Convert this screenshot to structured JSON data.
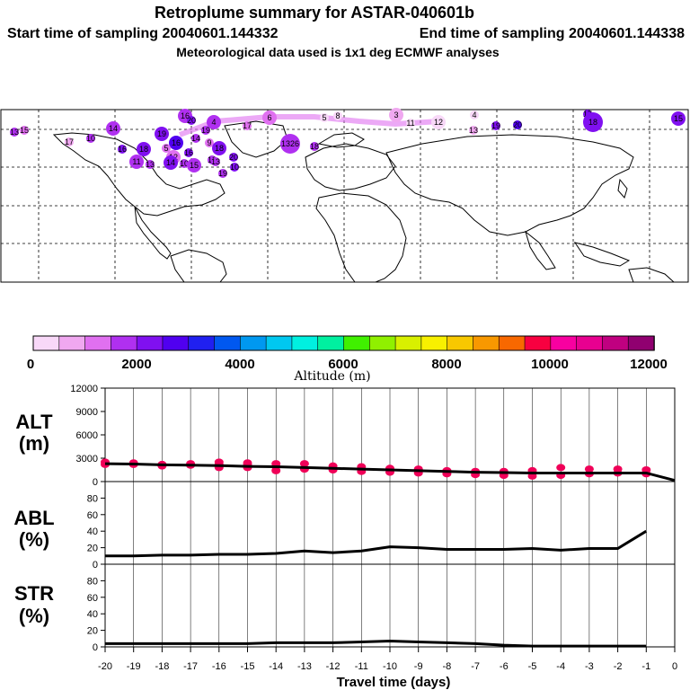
{
  "header": {
    "title": "Retroplume summary for ASTAR-040601b",
    "start_label": "Start time of sampling 20040601.144332",
    "end_label": "End time of sampling 20040601.144338",
    "met_label": "Meteorological data used is 1x1 deg ECMWF analyses"
  },
  "colorbar": {
    "colors": [
      "#f8d8f8",
      "#f0a8f0",
      "#e070f0",
      "#b030f0",
      "#8010f0",
      "#5000f0",
      "#2020f0",
      "#0058f0",
      "#0098f0",
      "#00c8f0",
      "#00f0e0",
      "#00f0a0",
      "#40f000",
      "#90f000",
      "#d8f000",
      "#f8f000",
      "#f8c800",
      "#f89800",
      "#f86800",
      "#f80040",
      "#f800a0",
      "#e80090",
      "#c00080",
      "#900070"
    ],
    "tick_labels": [
      "0",
      "2000",
      "4000",
      "6000",
      "8000",
      "10000",
      "12000"
    ],
    "label": "Altitude (m)"
  },
  "map": {
    "clusters": [
      {
        "label": "4",
        "size": "medium",
        "color": "#b030f0"
      },
      {
        "label": "6",
        "size": "medium",
        "color": "#e070f0"
      },
      {
        "label": "5",
        "size": "small",
        "color": "#f8d8f8"
      },
      {
        "label": "8",
        "size": "small",
        "color": "#f8d8f8"
      },
      {
        "label": "3",
        "size": "medium",
        "color": "#f0a8f0"
      },
      {
        "label": "11",
        "size": "small",
        "color": "#f8d8f8"
      },
      {
        "label": "12",
        "size": "medium",
        "color": "#f8d8f8"
      },
      {
        "label": "4",
        "size": "small",
        "color": "#f8d8f8"
      },
      {
        "label": "13",
        "size": "small",
        "color": "#f0a8f0"
      },
      {
        "label": "19",
        "size": "small",
        "color": "#8010f0"
      },
      {
        "label": "20",
        "size": "small",
        "color": "#5000f0"
      },
      {
        "label": "17",
        "size": "small",
        "color": "#8010f0"
      },
      {
        "label": "18",
        "size": "large",
        "color": "#8010f0"
      },
      {
        "label": "15",
        "size": "medium",
        "color": "#8010f0"
      },
      {
        "label": "16",
        "size": "medium",
        "color": "#b030f0"
      },
      {
        "label": "20",
        "size": "small",
        "color": "#8010f0"
      },
      {
        "label": "13",
        "size": "small",
        "color": "#b030f0"
      },
      {
        "label": "15",
        "size": "small",
        "color": "#e070f0"
      },
      {
        "label": "14",
        "size": "medium",
        "color": "#b030f0"
      },
      {
        "label": "17",
        "size": "small",
        "color": "#f0a8f0"
      },
      {
        "label": "10",
        "size": "small",
        "color": "#b030f0"
      },
      {
        "label": "9",
        "size": "small",
        "color": "#e070f0"
      },
      {
        "label": "1326",
        "size": "large",
        "color": "#b030f0"
      },
      {
        "label": "19",
        "size": "medium",
        "color": "#8010f0"
      },
      {
        "label": "16",
        "size": "medium",
        "color": "#5000f0"
      },
      {
        "label": "18",
        "size": "medium",
        "color": "#8010f0"
      },
      {
        "label": "16",
        "size": "small",
        "color": "#8010f0"
      },
      {
        "label": "11",
        "size": "medium",
        "color": "#b030f0"
      },
      {
        "label": "13",
        "size": "small",
        "color": "#b030f0"
      },
      {
        "label": "12",
        "size": "medium",
        "color": "#e070f0"
      },
      {
        "label": "10",
        "size": "small",
        "color": "#b030f0"
      },
      {
        "label": "14",
        "size": "medium",
        "color": "#8010f0"
      },
      {
        "label": "15",
        "size": "medium",
        "color": "#b030f0"
      },
      {
        "label": "12",
        "size": "small",
        "color": "#b030f0"
      },
      {
        "label": "10",
        "size": "small",
        "color": "#8010f0"
      },
      {
        "label": "19",
        "size": "small",
        "color": "#b030f0"
      },
      {
        "label": "17",
        "size": "small",
        "color": "#e070f0"
      },
      {
        "label": "18",
        "size": "medium",
        "color": "#8010f0"
      },
      {
        "label": "20",
        "size": "small",
        "color": "#8010f0"
      },
      {
        "label": "19",
        "size": "small",
        "color": "#b030f0"
      },
      {
        "label": "14",
        "size": "small",
        "color": "#b030f0"
      },
      {
        "label": "16",
        "size": "small",
        "color": "#8010f0"
      },
      {
        "label": "13",
        "size": "small",
        "color": "#b030f0"
      },
      {
        "label": "5",
        "size": "small",
        "color": "#e070f0"
      },
      {
        "label": "18",
        "size": "small",
        "color": "#b030f0"
      }
    ]
  },
  "chart_data": [
    {
      "type": "scatter",
      "panel": "ALT",
      "ylabel": "ALT",
      "yunit": "(m)",
      "ylim": [
        0,
        12000
      ],
      "yticks": [
        0,
        3000,
        6000,
        9000,
        12000
      ],
      "xlim": [
        -20,
        0
      ],
      "mean_line": {
        "x": [
          -20,
          -19,
          -18,
          -17,
          -16,
          -15,
          -14,
          -13,
          -12,
          -11,
          -10,
          -9,
          -8,
          -7,
          -6,
          -5,
          -4,
          -3,
          -2,
          -1,
          0
        ],
        "y": [
          2300,
          2250,
          2150,
          2100,
          2050,
          1950,
          1900,
          1800,
          1700,
          1600,
          1500,
          1400,
          1300,
          1200,
          1150,
          1100,
          1100,
          1100,
          1100,
          1100,
          150
        ]
      },
      "points": [
        {
          "x": -20,
          "y": 2500
        },
        {
          "x": -20,
          "y": 2200
        },
        {
          "x": -19,
          "y": 2400
        },
        {
          "x": -19,
          "y": 2200
        },
        {
          "x": -18,
          "y": 2200
        },
        {
          "x": -18,
          "y": 2000
        },
        {
          "x": -17,
          "y": 2300
        },
        {
          "x": -17,
          "y": 2100
        },
        {
          "x": -16,
          "y": 2500
        },
        {
          "x": -16,
          "y": 2200
        },
        {
          "x": -16,
          "y": 1800
        },
        {
          "x": -15,
          "y": 2400
        },
        {
          "x": -15,
          "y": 2100
        },
        {
          "x": -15,
          "y": 1800
        },
        {
          "x": -14,
          "y": 2300
        },
        {
          "x": -14,
          "y": 1900
        },
        {
          "x": -14,
          "y": 1400
        },
        {
          "x": -13,
          "y": 2300
        },
        {
          "x": -13,
          "y": 1600
        },
        {
          "x": -12,
          "y": 2000
        },
        {
          "x": -12,
          "y": 1500
        },
        {
          "x": -11,
          "y": 1900
        },
        {
          "x": -11,
          "y": 1300
        },
        {
          "x": -10,
          "y": 1700
        },
        {
          "x": -10,
          "y": 1200
        },
        {
          "x": -9,
          "y": 1600
        },
        {
          "x": -9,
          "y": 1100
        },
        {
          "x": -8,
          "y": 1400
        },
        {
          "x": -8,
          "y": 1000
        },
        {
          "x": -7,
          "y": 1300
        },
        {
          "x": -7,
          "y": 900
        },
        {
          "x": -6,
          "y": 1300
        },
        {
          "x": -6,
          "y": 800
        },
        {
          "x": -5,
          "y": 1400
        },
        {
          "x": -5,
          "y": 700
        },
        {
          "x": -4,
          "y": 1800
        },
        {
          "x": -4,
          "y": 800
        },
        {
          "x": -3,
          "y": 1600
        },
        {
          "x": -3,
          "y": 1000
        },
        {
          "x": -2,
          "y": 1600
        },
        {
          "x": -2,
          "y": 1100
        },
        {
          "x": -1,
          "y": 1500
        },
        {
          "x": -1,
          "y": 1000
        }
      ]
    },
    {
      "type": "line",
      "panel": "ABL",
      "ylabel": "ABL",
      "yunit": "(%)",
      "ylim": [
        0,
        100
      ],
      "yticks": [
        0,
        20,
        40,
        60,
        80
      ],
      "x": [
        -20,
        -19,
        -18,
        -17,
        -16,
        -15,
        -14,
        -13,
        -12,
        -11,
        -10,
        -9,
        -8,
        -7,
        -6,
        -5,
        -4,
        -3,
        -2,
        -1
      ],
      "y": [
        10,
        10,
        11,
        11,
        12,
        12,
        13,
        16,
        14,
        16,
        21,
        20,
        18,
        18,
        18,
        19,
        17,
        19,
        19,
        40
      ]
    },
    {
      "type": "line",
      "panel": "STR",
      "ylabel": "STR",
      "yunit": "(%)",
      "ylim": [
        0,
        100
      ],
      "yticks": [
        0,
        20,
        40,
        60,
        80
      ],
      "x": [
        -20,
        -19,
        -18,
        -17,
        -16,
        -15,
        -14,
        -13,
        -12,
        -11,
        -10,
        -9,
        -8,
        -7,
        -6,
        -5,
        -4,
        -3,
        -2,
        -1
      ],
      "y": [
        4,
        4,
        4,
        4,
        4,
        4,
        5,
        5,
        5,
        6,
        7,
        6,
        5,
        4,
        2,
        1,
        1,
        1,
        1,
        1
      ]
    }
  ],
  "xaxis": {
    "tick_labels": [
      "-20",
      "-19",
      "-18",
      "-17",
      "-16",
      "-15",
      "-14",
      "-13",
      "-12",
      "-11",
      "-10",
      "-9",
      "-8",
      "-7",
      "-6",
      "-5",
      "-4",
      "-3",
      "-2",
      "-1",
      "0"
    ],
    "label": "Travel time (days)"
  }
}
